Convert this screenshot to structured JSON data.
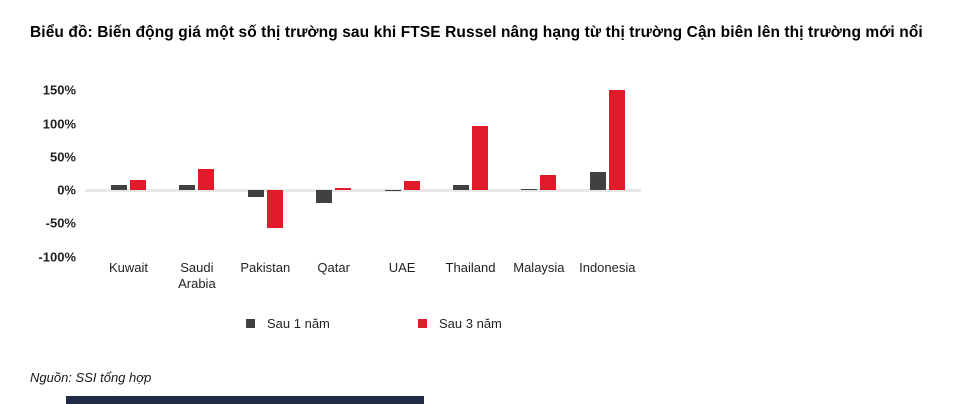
{
  "title": "Biểu đồ: Biến động giá một số thị trường sau khi FTSE Russel nâng hạng từ thị trường Cận biên lên thị trường mới nổi",
  "source": "Nguồn: SSI tổng hợp",
  "colors": {
    "series_1_year": "#414042",
    "series_3_year": "#e11b2a",
    "axis_line": "#e8e8e8",
    "bottom_bar": "#1f2a44",
    "text": "#231f20"
  },
  "chart_data": {
    "type": "bar",
    "categories": [
      "Kuwait",
      "Saudi Arabia",
      "Pakistan",
      "Qatar",
      "UAE",
      "Thailand",
      "Malaysia",
      "Indonesia"
    ],
    "series": [
      {
        "name": "Sau 1 năm",
        "color": "#414042",
        "values": [
          7,
          8,
          -10,
          -20,
          -1,
          8,
          2,
          27
        ]
      },
      {
        "name": "Sau 3 năm",
        "color": "#e11b2a",
        "values": [
          15,
          32,
          -57,
          3,
          14,
          96,
          22,
          150
        ]
      }
    ],
    "title": "",
    "xlabel": "",
    "ylabel": "",
    "ylim": [
      -100,
      150
    ],
    "yticks": [
      150,
      100,
      50,
      0,
      -50,
      -100
    ],
    "ytick_labels": [
      "150%",
      "100%",
      "50%",
      "0%",
      "-50%",
      "-100%"
    ],
    "grid": false,
    "legend_position": "bottom"
  },
  "legend": {
    "items": [
      {
        "label": "Sau 1 năm",
        "color": "#414042"
      },
      {
        "label": "Sau 3 năm",
        "color": "#e11b2a"
      }
    ]
  }
}
